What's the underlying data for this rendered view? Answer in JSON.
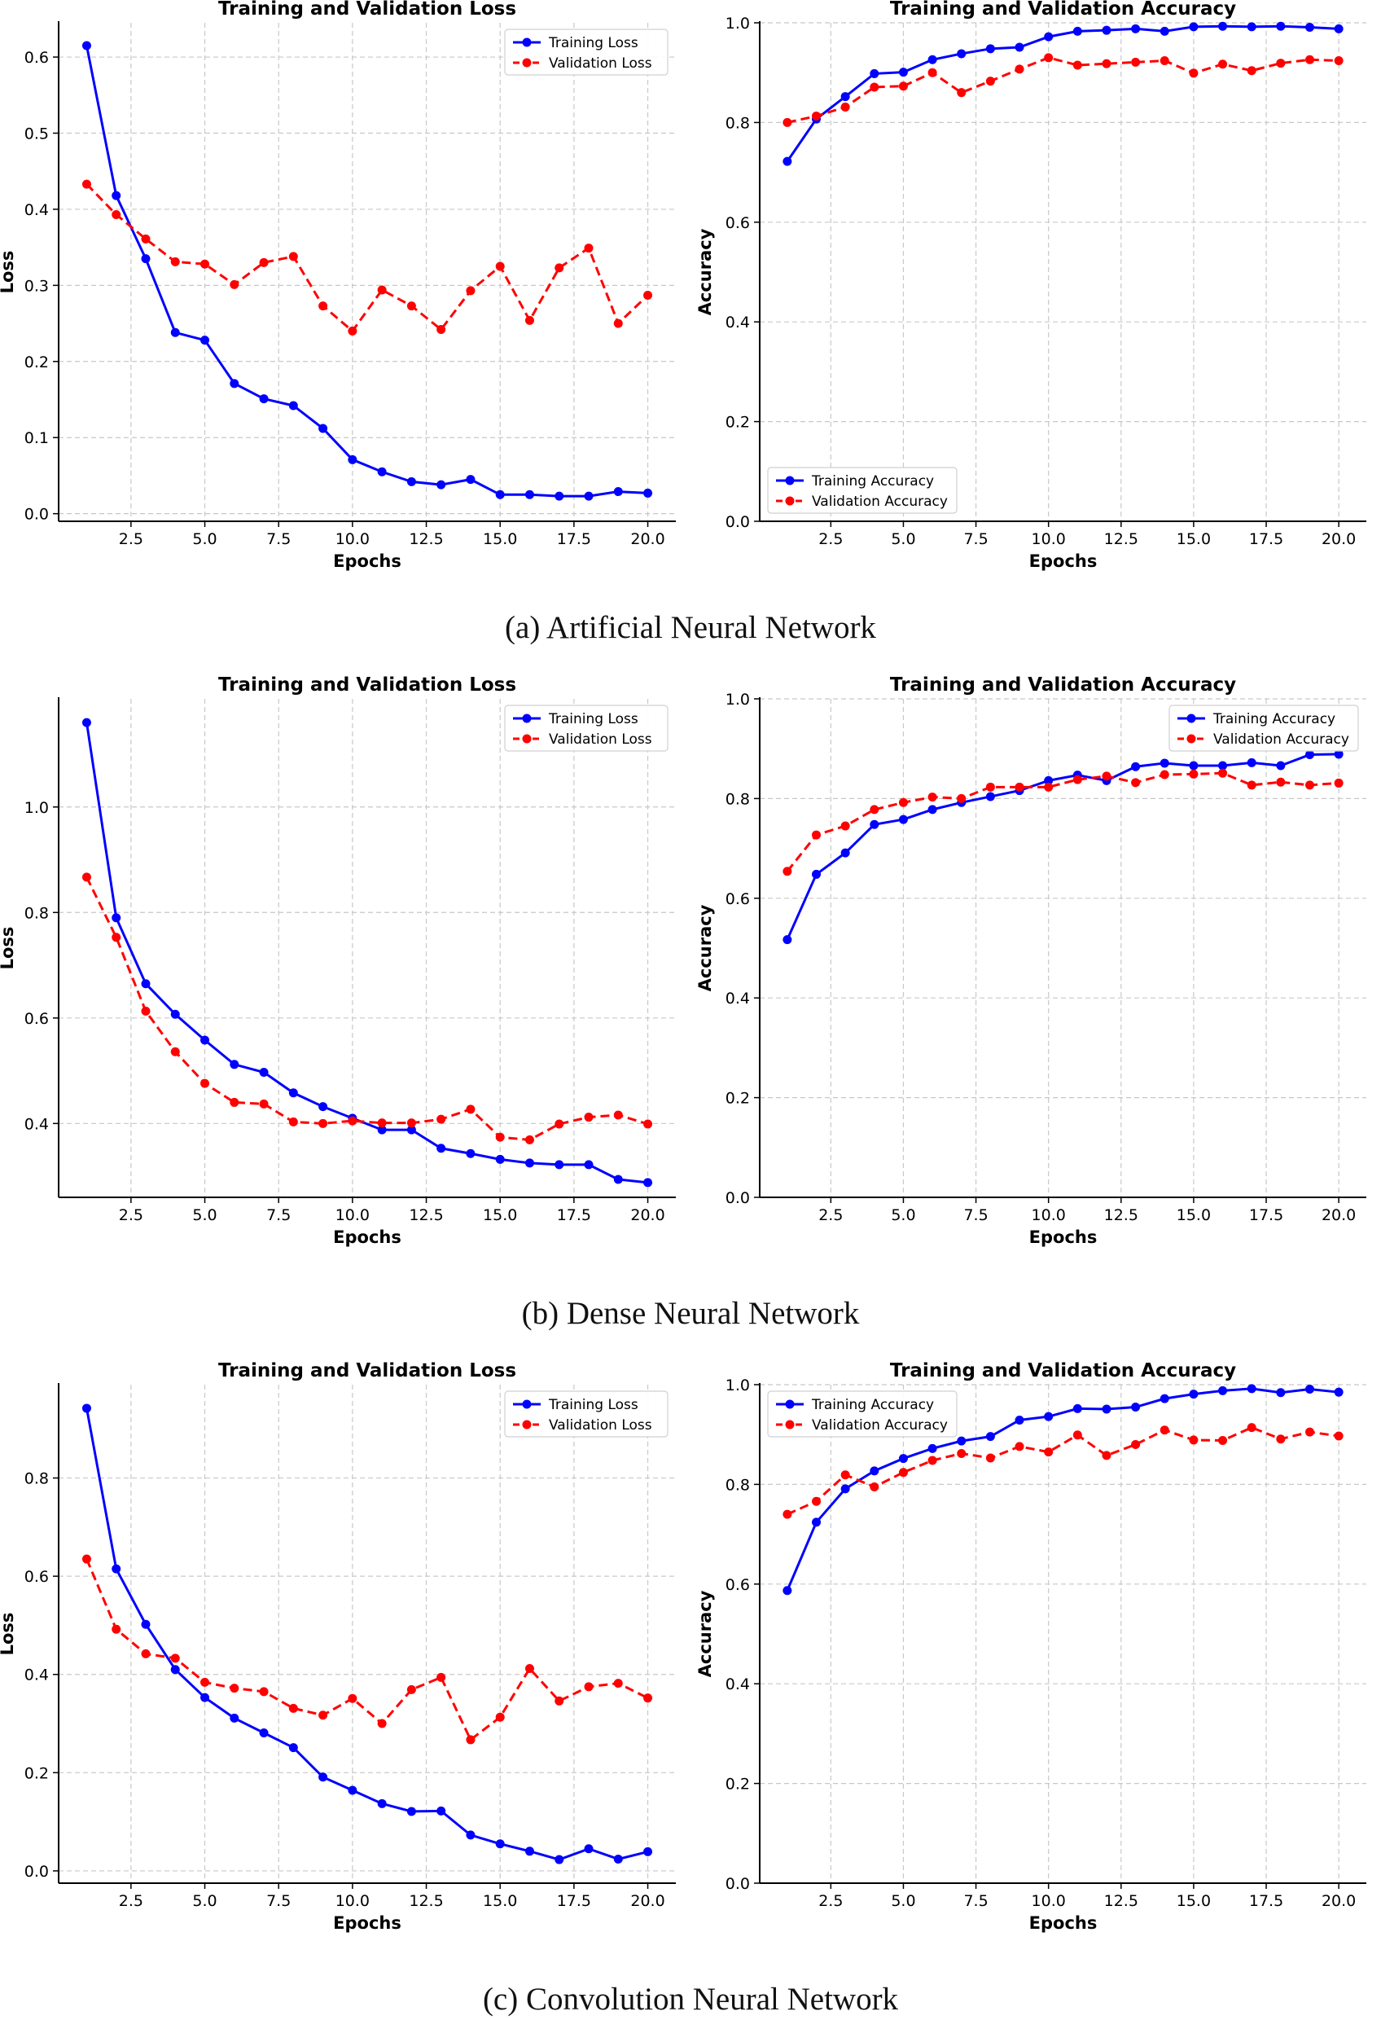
{
  "captions": {
    "a": "(a)  Artificial Neural Network",
    "b": "(b)  Dense Neural Network",
    "c": "(c)  Convolution Neural Network"
  },
  "colors": {
    "training": "#0000ff",
    "validation": "#ff0000"
  },
  "chart_data": [
    {
      "id": "ann-loss",
      "type": "line",
      "title": "Training and Validation Loss",
      "xlabel": "Epochs",
      "ylabel": "Loss",
      "xlim": [
        0.05,
        20.95
      ],
      "ylim": [
        -0.01,
        0.645
      ],
      "xticks": [
        "2.5",
        "5.0",
        "7.5",
        "10.0",
        "12.5",
        "15.0",
        "17.5",
        "20.0"
      ],
      "yticks": [
        "0.0",
        "0.1",
        "0.2",
        "0.3",
        "0.4",
        "0.5",
        "0.6"
      ],
      "legend_position": "top-right",
      "x": [
        1,
        2,
        3,
        4,
        5,
        6,
        7,
        8,
        9,
        10,
        11,
        12,
        13,
        14,
        15,
        16,
        17,
        18,
        19,
        20
      ],
      "series": [
        {
          "name": "Training Loss",
          "style": "solid",
          "values": [
            0.615,
            0.418,
            0.335,
            0.238,
            0.228,
            0.171,
            0.151,
            0.142,
            0.112,
            0.071,
            0.055,
            0.042,
            0.038,
            0.045,
            0.025,
            0.025,
            0.023,
            0.023,
            0.029,
            0.027
          ]
        },
        {
          "name": "Validation Loss",
          "style": "dashed",
          "values": [
            0.433,
            0.393,
            0.361,
            0.331,
            0.328,
            0.301,
            0.33,
            0.338,
            0.273,
            0.24,
            0.294,
            0.273,
            0.242,
            0.293,
            0.325,
            0.254,
            0.323,
            0.349,
            0.25,
            0.287
          ]
        }
      ]
    },
    {
      "id": "ann-acc",
      "type": "line",
      "title": "Training and Validation Accuracy",
      "xlabel": "Epochs",
      "ylabel": "Accuracy",
      "xlim": [
        0.05,
        20.95
      ],
      "ylim": [
        0.0,
        1.0
      ],
      "xticks": [
        "2.5",
        "5.0",
        "7.5",
        "10.0",
        "12.5",
        "15.0",
        "17.5",
        "20.0"
      ],
      "yticks": [
        "0.0",
        "0.2",
        "0.4",
        "0.6",
        "0.8",
        "1.0"
      ],
      "legend_position": "bottom-left",
      "x": [
        1,
        2,
        3,
        4,
        5,
        6,
        7,
        8,
        9,
        10,
        11,
        12,
        13,
        14,
        15,
        16,
        17,
        18,
        19,
        20
      ],
      "series": [
        {
          "name": "Training Accuracy",
          "style": "solid",
          "values": [
            0.722,
            0.807,
            0.852,
            0.898,
            0.901,
            0.926,
            0.938,
            0.948,
            0.951,
            0.972,
            0.983,
            0.985,
            0.988,
            0.983,
            0.992,
            0.993,
            0.992,
            0.993,
            0.991,
            0.988
          ]
        },
        {
          "name": "Validation Accuracy",
          "style": "dashed",
          "values": [
            0.8,
            0.813,
            0.831,
            0.871,
            0.873,
            0.9,
            0.86,
            0.883,
            0.907,
            0.93,
            0.915,
            0.918,
            0.921,
            0.924,
            0.899,
            0.917,
            0.904,
            0.919,
            0.926,
            0.924
          ]
        }
      ]
    },
    {
      "id": "dnn-loss",
      "type": "line",
      "title": "Training and Validation Loss",
      "xlabel": "Epochs",
      "ylabel": "Loss",
      "xlim": [
        0.05,
        20.95
      ],
      "ylim": [
        0.26,
        1.205
      ],
      "xticks": [
        "2.5",
        "5.0",
        "7.5",
        "10.0",
        "12.5",
        "15.0",
        "17.5",
        "20.0"
      ],
      "yticks": [
        "0.4",
        "0.6",
        "0.8",
        "1.0"
      ],
      "legend_position": "top-right",
      "x": [
        1,
        2,
        3,
        4,
        5,
        6,
        7,
        8,
        9,
        10,
        11,
        12,
        13,
        14,
        15,
        16,
        17,
        18,
        19,
        20
      ],
      "series": [
        {
          "name": "Training Loss",
          "style": "solid",
          "values": [
            1.16,
            0.79,
            0.665,
            0.607,
            0.558,
            0.512,
            0.497,
            0.458,
            0.432,
            0.41,
            0.388,
            0.388,
            0.353,
            0.343,
            0.332,
            0.325,
            0.322,
            0.322,
            0.294,
            0.288
          ]
        },
        {
          "name": "Validation Loss",
          "style": "dashed",
          "values": [
            0.867,
            0.753,
            0.613,
            0.536,
            0.476,
            0.44,
            0.437,
            0.403,
            0.4,
            0.405,
            0.401,
            0.401,
            0.408,
            0.427,
            0.374,
            0.369,
            0.399,
            0.412,
            0.416,
            0.399
          ]
        }
      ]
    },
    {
      "id": "dnn-acc",
      "type": "line",
      "title": "Training and Validation Accuracy",
      "xlabel": "Epochs",
      "ylabel": "Accuracy",
      "xlim": [
        0.05,
        20.95
      ],
      "ylim": [
        0.0,
        1.0
      ],
      "xticks": [
        "2.5",
        "5.0",
        "7.5",
        "10.0",
        "12.5",
        "15.0",
        "17.5",
        "20.0"
      ],
      "yticks": [
        "0.0",
        "0.2",
        "0.4",
        "0.6",
        "0.8",
        "1.0"
      ],
      "legend_position": "top-right",
      "x": [
        1,
        2,
        3,
        4,
        5,
        6,
        7,
        8,
        9,
        10,
        11,
        12,
        13,
        14,
        15,
        16,
        17,
        18,
        19,
        20
      ],
      "series": [
        {
          "name": "Training Accuracy",
          "style": "solid",
          "values": [
            0.517,
            0.648,
            0.691,
            0.748,
            0.758,
            0.778,
            0.792,
            0.804,
            0.816,
            0.836,
            0.847,
            0.836,
            0.864,
            0.871,
            0.866,
            0.866,
            0.872,
            0.866,
            0.888,
            0.889
          ]
        },
        {
          "name": "Validation Accuracy",
          "style": "dashed",
          "values": [
            0.654,
            0.727,
            0.745,
            0.778,
            0.792,
            0.803,
            0.8,
            0.823,
            0.823,
            0.823,
            0.838,
            0.845,
            0.832,
            0.848,
            0.849,
            0.851,
            0.827,
            0.833,
            0.827,
            0.831
          ]
        }
      ]
    },
    {
      "id": "cnn-loss",
      "type": "line",
      "title": "Training and Validation Loss",
      "xlabel": "Epochs",
      "ylabel": "Loss",
      "xlim": [
        0.05,
        20.95
      ],
      "ylim": [
        -0.025,
        0.99
      ],
      "xticks": [
        "2.5",
        "5.0",
        "7.5",
        "10.0",
        "12.5",
        "15.0",
        "17.5",
        "20.0"
      ],
      "yticks": [
        "0.0",
        "0.2",
        "0.4",
        "0.6",
        "0.8"
      ],
      "legend_position": "top-right",
      "x": [
        1,
        2,
        3,
        4,
        5,
        6,
        7,
        8,
        9,
        10,
        11,
        12,
        13,
        14,
        15,
        16,
        17,
        18,
        19,
        20
      ],
      "series": [
        {
          "name": "Training Loss",
          "style": "solid",
          "values": [
            0.942,
            0.615,
            0.502,
            0.41,
            0.353,
            0.311,
            0.281,
            0.251,
            0.191,
            0.164,
            0.137,
            0.121,
            0.122,
            0.073,
            0.055,
            0.04,
            0.023,
            0.045,
            0.024,
            0.039
          ]
        },
        {
          "name": "Validation Loss",
          "style": "dashed",
          "values": [
            0.635,
            0.492,
            0.442,
            0.433,
            0.384,
            0.372,
            0.365,
            0.331,
            0.317,
            0.351,
            0.3,
            0.369,
            0.394,
            0.267,
            0.313,
            0.412,
            0.346,
            0.375,
            0.382,
            0.352
          ]
        }
      ]
    },
    {
      "id": "cnn-acc",
      "type": "line",
      "title": "Training and Validation Accuracy",
      "xlabel": "Epochs",
      "ylabel": "Accuracy",
      "xlim": [
        0.05,
        20.95
      ],
      "ylim": [
        0.0,
        1.0
      ],
      "xticks": [
        "2.5",
        "5.0",
        "7.5",
        "10.0",
        "12.5",
        "15.0",
        "17.5",
        "20.0"
      ],
      "yticks": [
        "0.0",
        "0.2",
        "0.4",
        "0.6",
        "0.8",
        "1.0"
      ],
      "legend_position": "top-left",
      "x": [
        1,
        2,
        3,
        4,
        5,
        6,
        7,
        8,
        9,
        10,
        11,
        12,
        13,
        14,
        15,
        16,
        17,
        18,
        19,
        20
      ],
      "series": [
        {
          "name": "Training Accuracy",
          "style": "solid",
          "values": [
            0.587,
            0.724,
            0.791,
            0.827,
            0.852,
            0.872,
            0.887,
            0.896,
            0.929,
            0.936,
            0.952,
            0.951,
            0.955,
            0.972,
            0.981,
            0.988,
            0.992,
            0.984,
            0.991,
            0.985
          ]
        },
        {
          "name": "Validation Accuracy",
          "style": "dashed",
          "values": [
            0.74,
            0.766,
            0.819,
            0.795,
            0.824,
            0.848,
            0.862,
            0.853,
            0.876,
            0.865,
            0.899,
            0.858,
            0.88,
            0.909,
            0.889,
            0.888,
            0.914,
            0.891,
            0.905,
            0.897
          ]
        }
      ]
    }
  ]
}
